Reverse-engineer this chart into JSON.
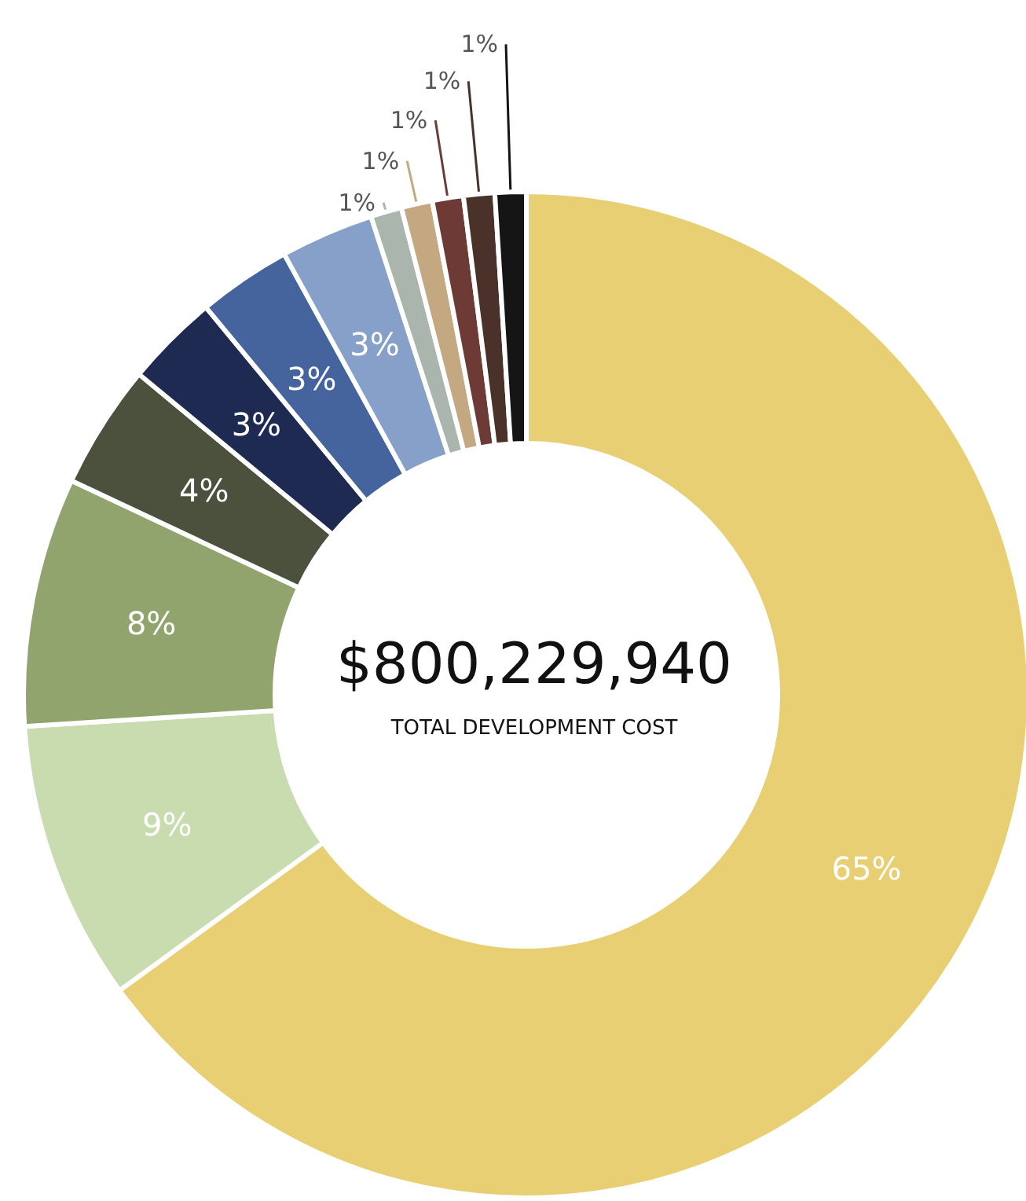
{
  "chart_data": {
    "type": "donut",
    "title": "$800,229,940",
    "subtitle": "TOTAL DEVELOPMENT COST",
    "categories": [
      null,
      null,
      null,
      null,
      null,
      null,
      null,
      null,
      null,
      null,
      null,
      null
    ],
    "values": [
      65,
      9,
      8,
      4,
      3,
      3,
      3,
      1,
      1,
      1,
      1,
      1
    ],
    "value_labels": [
      "65%",
      "9%",
      "8%",
      "4%",
      "3%",
      "3%",
      "3%",
      "1%",
      "1%",
      "1%",
      "1%",
      "1%"
    ],
    "colors": [
      "#e8cf74",
      "#c8dcaf",
      "#92a46e",
      "#4b513d",
      "#1f2a52",
      "#45649e",
      "#86a0c9",
      "#a9b5ad",
      "#c4a882",
      "#6e3a35",
      "#4a3129",
      "#151515"
    ]
  }
}
